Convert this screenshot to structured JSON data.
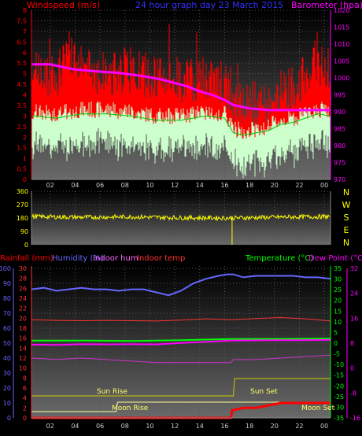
{
  "chart_data": [
    {
      "type": "line",
      "title": "24 hour graph day  23 March 2015",
      "left_axis_label": "Windspeed (m/s)",
      "right_axis_label": "Barometer (hpa)",
      "x_ticks": [
        "02",
        "04",
        "06",
        "08",
        "10",
        "12",
        "14",
        "16",
        "18",
        "20",
        "22",
        "00"
      ],
      "y_left_ticks": [
        "0",
        "0.5",
        "1",
        "1.5",
        "2",
        "2.5",
        "3",
        "3.5",
        "4",
        "4.5",
        "5",
        "5.5",
        "6",
        "6.5",
        "7",
        "7.5",
        "8"
      ],
      "y_left_lim": [
        0,
        8
      ],
      "y_right_ticks": [
        "970",
        "975",
        "980",
        "985",
        "990",
        "995",
        "1000",
        "1005",
        "1010",
        "1015",
        "1020"
      ],
      "y_right_lim": [
        970,
        1020
      ],
      "colors": {
        "gust": "#ff0000",
        "avg_wind": "#ccffcc",
        "barometer": "#ff00ff",
        "title": "#3333ff",
        "left_label": "#ff0000",
        "right_label": "#ff00ff",
        "axis_left": "#ff0000",
        "axis_right": "#ff00ff"
      },
      "series": [
        {
          "key": "barometer",
          "x": [
            0,
            1.5,
            2.8,
            3.5,
            5,
            7,
            9,
            10.5,
            11.5,
            12.5,
            13.5,
            14.5,
            15.5,
            16.2,
            17.5,
            19,
            20,
            21,
            22,
            23,
            24
          ],
          "y": [
            1004,
            1004,
            1003,
            1002.5,
            1002,
            1001.5,
            1000.5,
            999.5,
            998.5,
            997.5,
            996,
            995,
            993.5,
            992,
            991,
            990.5,
            990.5,
            990.5,
            990.5,
            990.5,
            990.5
          ]
        },
        {
          "key": "avg_wind",
          "x": [
            0,
            2,
            4,
            6,
            8,
            10,
            12,
            14,
            15.5,
            16.2,
            17,
            18,
            19,
            20,
            21,
            22,
            23,
            24
          ],
          "y": [
            3.2,
            3.1,
            3.3,
            3.3,
            3.2,
            3.0,
            3.0,
            3.2,
            3.1,
            2.4,
            2.3,
            2.4,
            2.5,
            2.8,
            2.9,
            3.1,
            3.3,
            3.2
          ]
        },
        {
          "key": "gust",
          "x": [
            0,
            2,
            3,
            4,
            6,
            8,
            10,
            12,
            14,
            15.5,
            16.2,
            17,
            18,
            19,
            20,
            21,
            22,
            23,
            24
          ],
          "y": [
            4.8,
            5.0,
            5.8,
            5.3,
            5.0,
            5.2,
            4.8,
            4.7,
            4.8,
            4.5,
            3.8,
            3.5,
            3.6,
            3.8,
            4.2,
            4.4,
            4.9,
            5.4,
            5.2
          ]
        }
      ]
    },
    {
      "type": "scatter",
      "y_ticks": [
        "0",
        "90",
        "180",
        "270",
        "360"
      ],
      "y_lim": [
        0,
        360
      ],
      "right_labels": [
        "N",
        "W",
        "S",
        "E",
        "N"
      ],
      "colors": {
        "direction": "#ffff00",
        "axis": "#ffff00"
      },
      "series": [
        {
          "key": "wind_direction",
          "x": [
            0,
            4,
            8,
            12,
            16,
            20,
            24
          ],
          "y": [
            190,
            185,
            188,
            182,
            180,
            186,
            190
          ]
        }
      ]
    },
    {
      "type": "line",
      "labels": {
        "rainfall": "Rainfall (mm)",
        "humidity": "Humidity (%)",
        "indoor_hum": "Indoor hum",
        "indoor_temp": "Indoor temp",
        "temperature": "Temperature (°C)",
        "dew_point": "Dew Point (°C)"
      },
      "annotations": {
        "sun_rise": "Sun Rise",
        "sun_set": "Sun Set",
        "moon_rise": "Moon Rise",
        "moon_set": "Moon Set"
      },
      "x_ticks": [
        "02",
        "04",
        "06",
        "08",
        "10",
        "12",
        "14",
        "16",
        "18",
        "20",
        "22",
        "00"
      ],
      "y_left1_ticks": [
        "0",
        "10",
        "20",
        "30",
        "40",
        "50",
        "60",
        "70",
        "80",
        "90",
        "100"
      ],
      "y_left2_ticks": [
        "0",
        "2",
        "4",
        "6",
        "8",
        "10",
        "12",
        "14",
        "16",
        "18",
        "20",
        "22",
        "24",
        "26",
        "28",
        "30"
      ],
      "y_right1_ticks": [
        "-35",
        "-30",
        "-25",
        "-20",
        "-15",
        "-10",
        "-5",
        "0",
        "5",
        "10",
        "15",
        "20",
        "25",
        "30",
        "35"
      ],
      "y_right2_ticks": [
        "-16",
        "-8",
        "0",
        "8",
        "16",
        "24",
        "32"
      ],
      "colors": {
        "humidity": "#6666ff",
        "indoor_hum": "#cc33cc",
        "indoor_temp": "#ff3333",
        "temperature": "#00ff00",
        "dew_point": "#ff00ff",
        "rainfall": "#ff0000",
        "sun": "#cccc00",
        "moon": "#ffff99",
        "label_rain": "#ff0000",
        "label_hum": "#6666ff",
        "label_indoor_hum": "#ff66ff",
        "label_indoor_temp": "#ff3333",
        "label_temp": "#00ff00",
        "label_dew": "#ff00ff"
      },
      "series": [
        {
          "key": "humidity",
          "x": [
            0,
            1,
            2,
            3,
            4,
            5,
            6,
            7,
            8,
            9,
            10,
            11,
            12,
            13,
            14,
            15,
            15.7,
            16.2,
            17,
            18,
            19,
            20,
            21,
            22,
            23,
            24
          ],
          "y": [
            86,
            87,
            85,
            86,
            87,
            86,
            86,
            85,
            86,
            86,
            84,
            82,
            85,
            90,
            93,
            95,
            96,
            96,
            94,
            95,
            95,
            95,
            95,
            94,
            94,
            93
          ]
        },
        {
          "key": "temperature",
          "x": [
            0,
            4,
            8,
            12,
            16,
            20,
            24
          ],
          "y": [
            1.2,
            1.2,
            1.0,
            1.4,
            1.9,
            2.0,
            2.1
          ]
        },
        {
          "key": "dew_point",
          "x": [
            0,
            2,
            4,
            6,
            8,
            10,
            12,
            14,
            16,
            18,
            20,
            22,
            24
          ],
          "y": [
            -0.7,
            -0.8,
            -0.5,
            -0.6,
            -0.5,
            -0.6,
            0.1,
            0.6,
            1.2,
            1.3,
            1.4,
            1.4,
            1.5
          ]
        },
        {
          "key": "indoor_temp",
          "x": [
            0,
            2,
            4,
            6,
            8,
            10,
            12,
            14,
            16,
            18,
            20,
            22,
            24
          ],
          "y": [
            15.5,
            15.3,
            15.2,
            15.3,
            15.2,
            15.1,
            15.4,
            15.8,
            15.5,
            15.9,
            16.2,
            15.8,
            15.1
          ]
        },
        {
          "key": "indoor_hum",
          "x": [
            0,
            2,
            4,
            6,
            8,
            10,
            12,
            14,
            16,
            16.2,
            18,
            20,
            22,
            24
          ],
          "y": [
            40,
            39,
            40,
            39,
            38,
            37,
            37,
            37,
            37,
            39,
            39,
            40,
            41,
            42
          ]
        },
        {
          "key": "rainfall",
          "x": [
            0,
            4,
            8,
            12,
            16,
            16.1,
            17,
            18,
            19,
            20,
            21,
            22,
            23,
            24
          ],
          "y": [
            0,
            0,
            0,
            0,
            0,
            1.5,
            2.0,
            2.0,
            2.5,
            3.0,
            3.0,
            3.0,
            3.0,
            3.0
          ]
        },
        {
          "key": "sun",
          "x": [
            0,
            16.2,
            16.3,
            24
          ],
          "y": [
            0,
            0,
            1,
            1
          ]
        },
        {
          "key": "moon",
          "x": [
            0,
            6.8,
            6.9,
            24
          ],
          "y": [
            0,
            0,
            1,
            1
          ]
        }
      ]
    }
  ]
}
